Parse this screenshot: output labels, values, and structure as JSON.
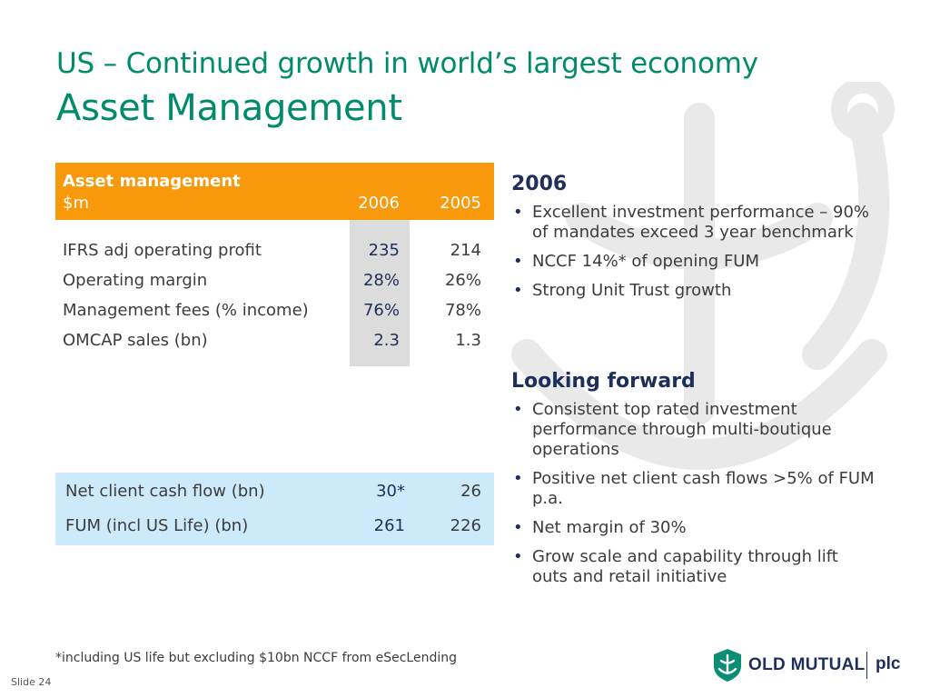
{
  "title": {
    "line1": "US – Continued growth in world’s largest economy",
    "line2": "Asset Management"
  },
  "table": {
    "header_line1": "Asset management",
    "header_line2": "$m",
    "col_2006": "2006",
    "col_2005": "2005",
    "rows": [
      {
        "label": "IFRS adj operating profit",
        "v2006": "235",
        "v2005": "214"
      },
      {
        "label": "Operating margin",
        "v2006": "28%",
        "v2005": "26%"
      },
      {
        "label": "Management fees (% income)",
        "v2006": "76%",
        "v2005": "78%"
      },
      {
        "label": "OMCAP sales (bn)",
        "v2006": "2.3",
        "v2005": "1.3"
      }
    ],
    "highlight_rows": [
      {
        "label": "Net client cash flow (bn)",
        "v2006": "30*",
        "v2005": "26"
      },
      {
        "label": "FUM (incl US Life) (bn)",
        "v2006": "261",
        "v2005": "226"
      }
    ]
  },
  "section_2006": {
    "heading": "2006",
    "bullets": [
      "Excellent investment performance – 90% of mandates exceed 3 year benchmark",
      "NCCF 14%* of opening FUM",
      "Strong Unit Trust growth"
    ]
  },
  "section_forward": {
    "heading": "Looking forward",
    "bullets": [
      "Consistent top rated investment performance through multi-boutique operations",
      "Positive net client cash flows >5% of FUM p.a.",
      "Net margin of 30%",
      "Grow scale and capability through lift outs and retail initiative"
    ]
  },
  "footnote": "*including US life but excluding $10bn NCCF from eSecLending",
  "slide_number": "Slide 24",
  "logo": {
    "brand": "OLD MUTUAL",
    "suffix": "plc",
    "icon": "old-mutual-shield-logo"
  },
  "colors": {
    "title_green": "#008c6a",
    "header_orange": "#f7990b",
    "highlight_grey": "#dcdcdc",
    "box_blue": "#cdeafb",
    "navy": "#1f2f5c"
  }
}
